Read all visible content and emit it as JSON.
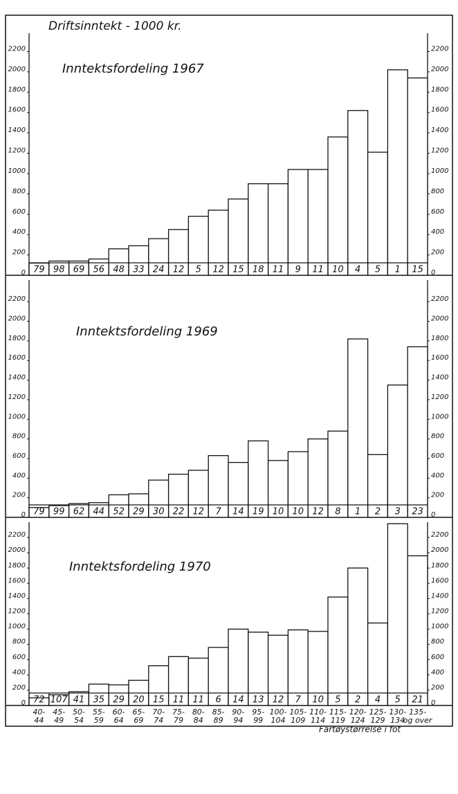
{
  "chart_data": [
    {
      "type": "bar",
      "ylabel": "Driftsinntekt - 1000 kr.",
      "title": "Inntektsfordeling 1967",
      "categories": [
        null,
        null,
        null,
        null,
        null,
        null,
        null,
        null,
        null,
        null,
        null,
        null,
        null,
        null,
        null,
        null,
        null,
        null,
        null,
        null
      ],
      "values": [
        120,
        140,
        140,
        160,
        260,
        290,
        360,
        450,
        580,
        640,
        750,
        900,
        900,
        1040,
        1040,
        1360,
        1620,
        1210,
        2020,
        1940
      ],
      "counts": [
        79,
        98,
        69,
        56,
        48,
        33,
        24,
        12,
        5,
        12,
        15,
        18,
        11,
        9,
        11,
        10,
        4,
        5,
        1,
        15
      ],
      "ylim": [
        0,
        2380
      ],
      "yticks": [
        0,
        200,
        400,
        600,
        800,
        1000,
        1200,
        1400,
        1600,
        1800,
        2000,
        2200
      ]
    },
    {
      "type": "bar",
      "title": "Inntektsfordeling 1969",
      "categories": [
        null,
        null,
        null,
        null,
        null,
        null,
        null,
        null,
        null,
        null,
        null,
        null,
        null,
        null,
        null,
        null,
        null,
        null,
        null,
        null
      ],
      "values": [
        100,
        120,
        140,
        150,
        230,
        240,
        380,
        440,
        480,
        630,
        560,
        780,
        580,
        670,
        800,
        880,
        1820,
        640,
        1350,
        1740
      ],
      "counts": [
        79,
        99,
        62,
        44,
        52,
        29,
        30,
        22,
        12,
        7,
        14,
        19,
        10,
        10,
        12,
        8,
        1,
        2,
        3,
        23
      ],
      "ylim": [
        0,
        2420
      ],
      "yticks": [
        0,
        200,
        400,
        600,
        800,
        1000,
        1200,
        1400,
        1600,
        1800,
        2000,
        2200
      ]
    },
    {
      "type": "bar",
      "title": "Inntektsfordeling 1970",
      "xlabel": "Fartøystørrelse i fot",
      "categories": [
        [
          "40-",
          "44"
        ],
        [
          "45-",
          "49"
        ],
        [
          "50-",
          "54"
        ],
        [
          "55-",
          "59"
        ],
        [
          "60-",
          "64"
        ],
        [
          "65-",
          "69"
        ],
        [
          "70-",
          "74"
        ],
        [
          "75-",
          "79"
        ],
        [
          "80-",
          "84"
        ],
        [
          "85-",
          "89"
        ],
        [
          "90-",
          "94"
        ],
        [
          "95-",
          "99"
        ],
        [
          "100-",
          "104"
        ],
        [
          "105-",
          "109"
        ],
        [
          "110-",
          "114"
        ],
        [
          "115-",
          "119"
        ],
        [
          "120-",
          "124"
        ],
        [
          "125-",
          "129"
        ],
        [
          "130-",
          "134"
        ],
        [
          "135-",
          "og over"
        ]
      ],
      "values": [
        100,
        140,
        180,
        280,
        270,
        330,
        520,
        640,
        620,
        760,
        1000,
        960,
        920,
        990,
        970,
        1420,
        1800,
        1080,
        2380,
        1960
      ],
      "counts": [
        72,
        107,
        41,
        35,
        29,
        20,
        15,
        11,
        11,
        6,
        14,
        13,
        12,
        7,
        10,
        5,
        2,
        4,
        5,
        21
      ],
      "ylim": [
        0,
        2400
      ],
      "yticks": [
        0,
        200,
        400,
        600,
        800,
        1000,
        1200,
        1400,
        1600,
        1800,
        2000,
        2200
      ]
    }
  ]
}
